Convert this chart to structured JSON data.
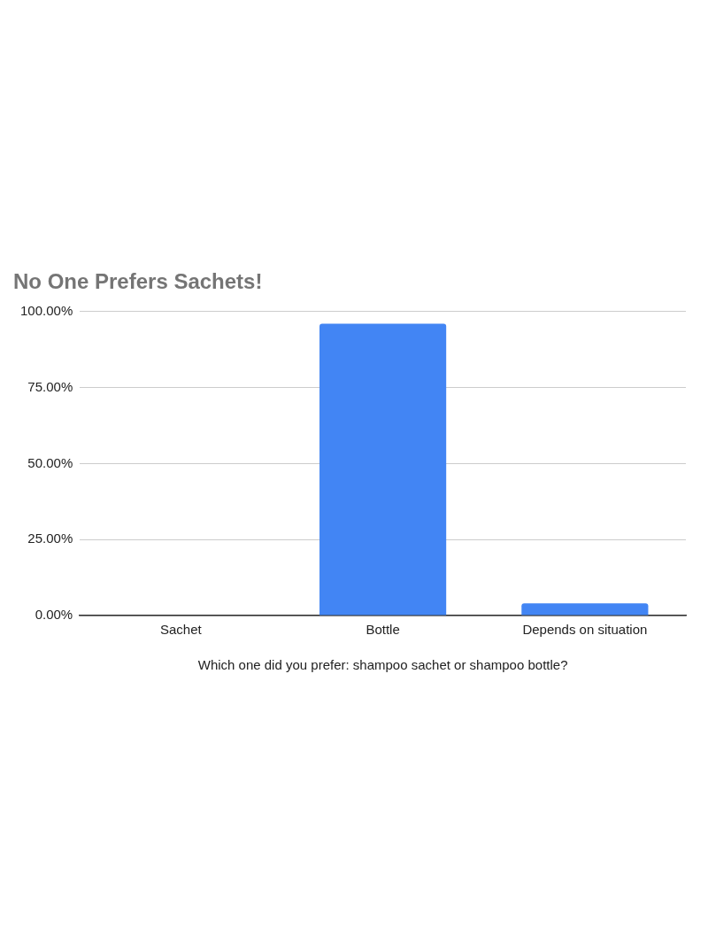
{
  "chart_data": {
    "type": "bar",
    "title": "No One Prefers Sachets!",
    "xlabel": "Which one did you prefer: shampoo sachet or shampoo bottle?",
    "categories": [
      "Sachet",
      "Bottle",
      "Depends on situation"
    ],
    "values": [
      0,
      96,
      4
    ],
    "color": "#4285f4",
    "ylim": [
      0,
      100
    ],
    "yticks": [
      {
        "value": 0,
        "label": "0.00%"
      },
      {
        "value": 25,
        "label": "25.00%"
      },
      {
        "value": 50,
        "label": "50.00%"
      },
      {
        "value": 75,
        "label": "75.00%"
      },
      {
        "value": 100,
        "label": "100.00%"
      }
    ],
    "grid": "y",
    "legend": false
  }
}
